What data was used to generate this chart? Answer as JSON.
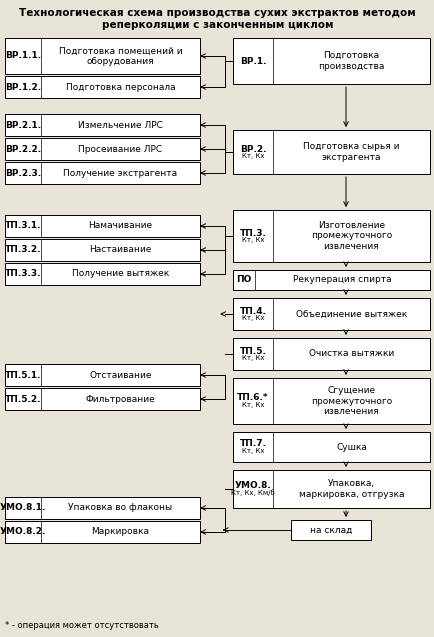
{
  "title": "Технологическая схема производства сухих экстрактов методом\nреперколяции с законченным циклом",
  "bg_color": "#e8e4d8",
  "footnote": "* - операция может отсутствовать",
  "left_boxes": [
    {
      "id": "vr11",
      "label": "ВР.1.1.",
      "text": "Подготовка помещений и\nоборудования"
    },
    {
      "id": "vr12",
      "label": "ВР.1.2.",
      "text": "Подготовка персонала"
    },
    {
      "id": "vr21",
      "label": "ВР.2.1.",
      "text": "Измельчение ЛРС"
    },
    {
      "id": "vr22",
      "label": "ВР.2.2.",
      "text": "Просеивание ЛРС"
    },
    {
      "id": "vr23",
      "label": "ВР.2.3.",
      "text": "Получение экстрагента"
    },
    {
      "id": "tp31",
      "label": "ТП.3.1.",
      "text": "Намачивание"
    },
    {
      "id": "tp32",
      "label": "ТП.3.2.",
      "text": "Настаивание"
    },
    {
      "id": "tp33",
      "label": "ТП.3.3.",
      "text": "Получение вытяжек"
    },
    {
      "id": "tp51",
      "label": "ТП.5.1.",
      "text": "Отстаивание"
    },
    {
      "id": "tp52",
      "label": "ТП.5.2.",
      "text": "Фильтрование"
    },
    {
      "id": "umo81",
      "label": "УМО.8.1.",
      "text": "Упаковка во флаконы"
    },
    {
      "id": "umo82",
      "label": "УМО.8.2.",
      "text": "Маркировка"
    }
  ],
  "right_boxes": [
    {
      "id": "vr1",
      "label": "ВР.1.",
      "sublabel": "",
      "text": "Подготовка\nпроизводства"
    },
    {
      "id": "vr2",
      "label": "ВР.2.",
      "sublabel": "Кт, Кх",
      "text": "Подготовка сырья и\nэкстрагента"
    },
    {
      "id": "tp3",
      "label": "ТП.3.",
      "sublabel": "Кт, Кх",
      "text": "Изготовление\nпромежуточного\nизвлечения"
    },
    {
      "id": "po",
      "label": "ПО",
      "sublabel": "",
      "text": "Рекуперация спирта"
    },
    {
      "id": "tp4",
      "label": "ТП.4.",
      "sublabel": "Кт, Кх",
      "text": "Объединение вытяжек"
    },
    {
      "id": "tp5",
      "label": "ТП.5.",
      "sublabel": "Кт, Кх",
      "text": "Очистка вытяжки"
    },
    {
      "id": "tp6",
      "label": "ТП.6.*",
      "sublabel": "Кт, Кх",
      "text": "Сгущение\nпромежуточного\nизвлечения"
    },
    {
      "id": "tp7",
      "label": "ТП.7.",
      "sublabel": "Кт, Кх",
      "text": "Сушка"
    },
    {
      "id": "umo8",
      "label": "УМО.8.",
      "sublabel": "Кт, Кх, Км/б",
      "text": "Упаковка,\nмаркировка, отгрузка"
    }
  ]
}
